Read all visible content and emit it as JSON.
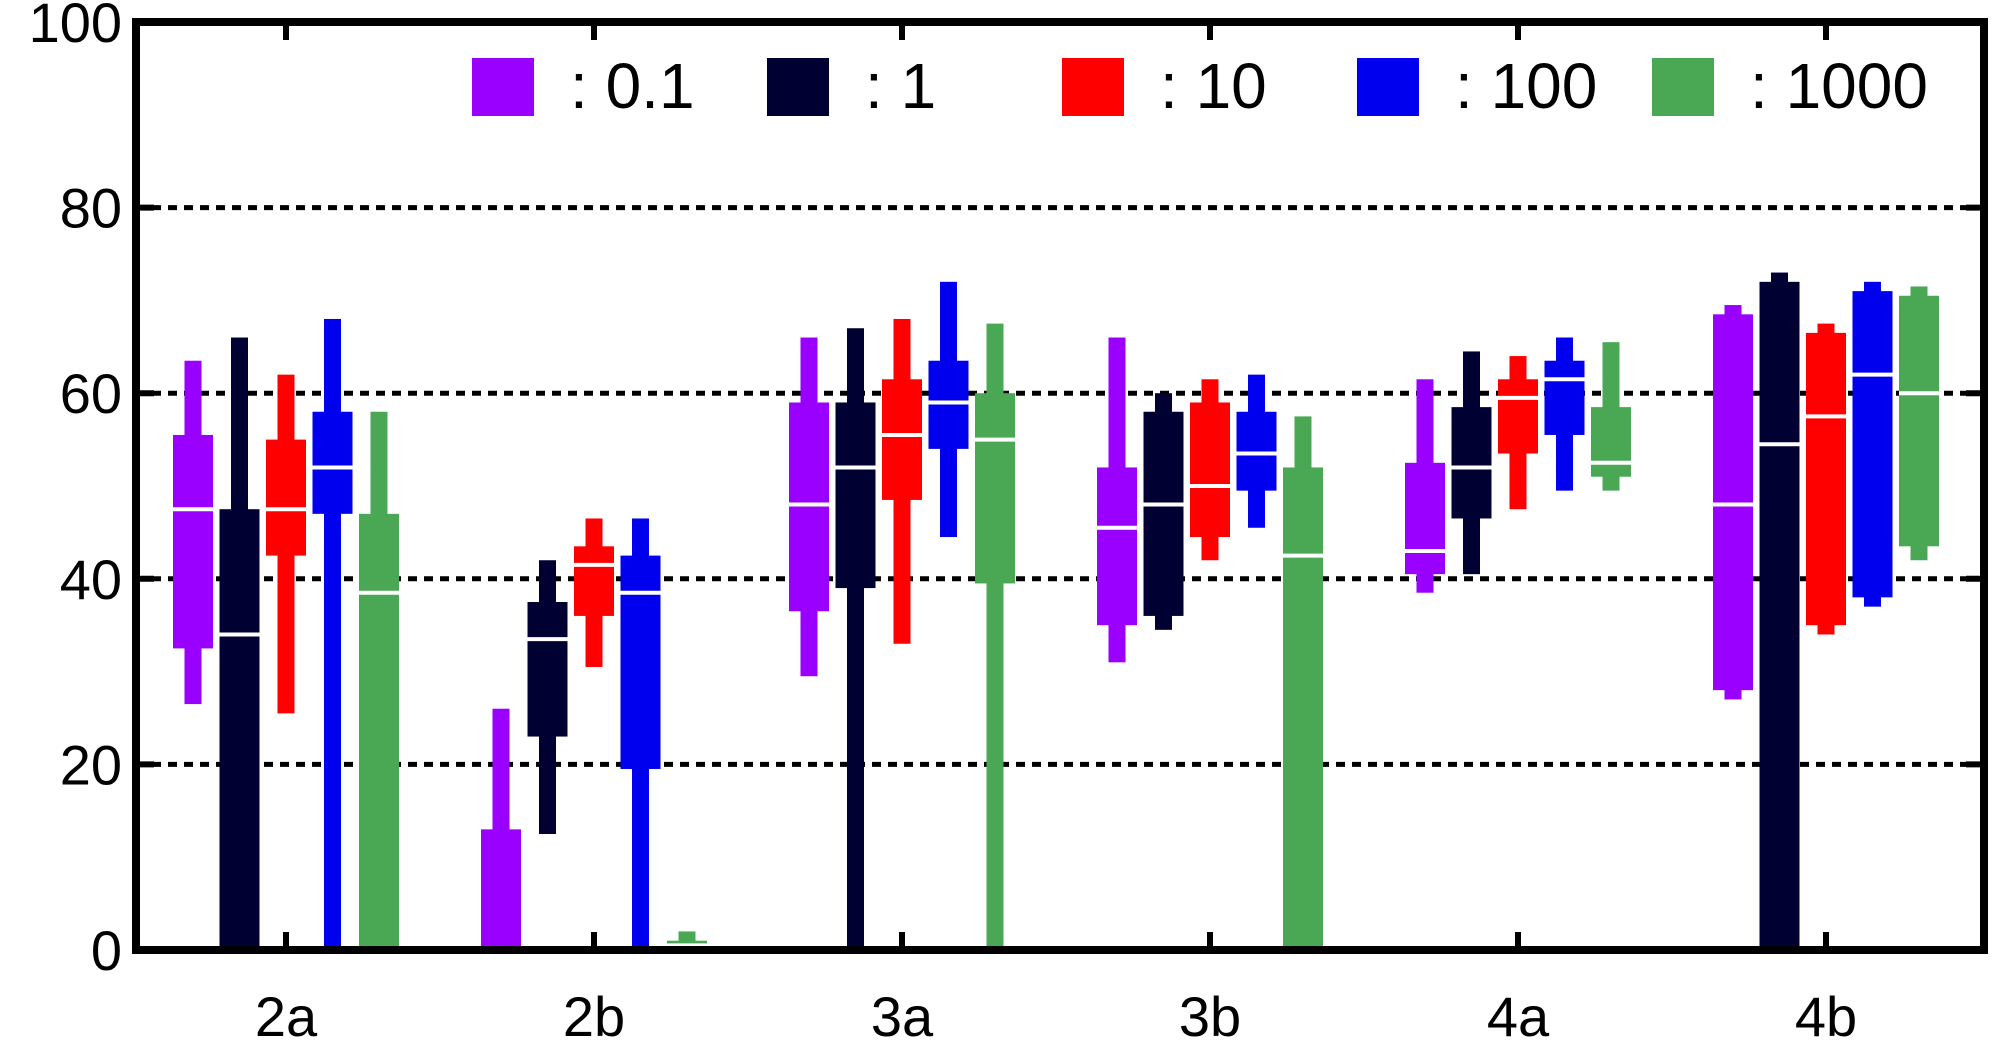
{
  "chart_data": {
    "type": "boxplot",
    "title": "",
    "xlabel": "",
    "ylabel": "",
    "ylim": [
      0,
      100
    ],
    "yticks": [
      0,
      20,
      40,
      60,
      80,
      100
    ],
    "grid": "horizontal dotted at 20, 40, 60, 80",
    "legend_placement": "top",
    "categories": [
      "2a",
      "2b",
      "3a",
      "3b",
      "4a",
      "4b"
    ],
    "series": [
      {
        "name": ": 0.1",
        "color": "#9900ff",
        "boxes": [
          {
            "min": 26.5,
            "q1": 32.5,
            "median": 47.5,
            "q3": 55.5,
            "max": 63.5
          },
          {
            "min": 0,
            "q1": 0,
            "median": 0,
            "q3": 13,
            "max": 26
          },
          {
            "min": 29.5,
            "q1": 36.5,
            "median": 48,
            "q3": 59,
            "max": 66
          },
          {
            "min": 31,
            "q1": 35,
            "median": 45.5,
            "q3": 52,
            "max": 66
          },
          {
            "min": 38.5,
            "q1": 40.5,
            "median": 43,
            "q3": 52.5,
            "max": 61.5
          },
          {
            "min": 27,
            "q1": 28,
            "median": 48,
            "q3": 68.5,
            "max": 69.5
          }
        ]
      },
      {
        "name": ": 1",
        "color": "#000033",
        "boxes": [
          {
            "min": 0,
            "q1": 0,
            "median": 34,
            "q3": 47.5,
            "max": 66
          },
          {
            "min": 12.5,
            "q1": 23,
            "median": 33.5,
            "q3": 37.5,
            "max": 42
          },
          {
            "min": 0,
            "q1": 39,
            "median": 52,
            "q3": 59,
            "max": 67
          },
          {
            "min": 34.5,
            "q1": 36,
            "median": 48,
            "q3": 58,
            "max": 60
          },
          {
            "min": 40.5,
            "q1": 46.5,
            "median": 52,
            "q3": 58.5,
            "max": 64.5
          },
          {
            "min": 0,
            "q1": 0,
            "median": 54.5,
            "q3": 72,
            "max": 73
          }
        ]
      },
      {
        "name": ": 10",
        "color": "#ff0000",
        "boxes": [
          {
            "min": 25.5,
            "q1": 42.5,
            "median": 47.5,
            "q3": 55,
            "max": 62
          },
          {
            "min": 30.5,
            "q1": 36,
            "median": 41.5,
            "q3": 43.5,
            "max": 46.5
          },
          {
            "min": 33,
            "q1": 48.5,
            "median": 55.5,
            "q3": 61.5,
            "max": 68
          },
          {
            "min": 42,
            "q1": 44.5,
            "median": 50,
            "q3": 59,
            "max": 61.5
          },
          {
            "min": 47.5,
            "q1": 53.5,
            "median": 59.5,
            "q3": 61.5,
            "max": 64
          },
          {
            "min": 34,
            "q1": 35,
            "median": 57.5,
            "q3": 66.5,
            "max": 67.5
          }
        ]
      },
      {
        "name": ": 100",
        "color": "#0000ee",
        "boxes": [
          {
            "min": 0,
            "q1": 47,
            "median": 52,
            "q3": 58,
            "max": 68
          },
          {
            "min": 0,
            "q1": 19.5,
            "median": 38.5,
            "q3": 42.5,
            "max": 46.5
          },
          {
            "min": 44.5,
            "q1": 54,
            "median": 59,
            "q3": 63.5,
            "max": 72
          },
          {
            "min": 45.5,
            "q1": 49.5,
            "median": 53.5,
            "q3": 58,
            "max": 62
          },
          {
            "min": 49.5,
            "q1": 55.5,
            "median": 61.5,
            "q3": 63.5,
            "max": 66
          },
          {
            "min": 37,
            "q1": 38,
            "median": 62,
            "q3": 71,
            "max": 72
          }
        ]
      },
      {
        "name": ": 1000",
        "color": "#4aa855",
        "boxes": [
          {
            "min": 0,
            "q1": 0,
            "median": 38.5,
            "q3": 47,
            "max": 58
          },
          {
            "min": 0,
            "q1": 0,
            "median": 0.5,
            "q3": 1,
            "max": 2
          },
          {
            "min": 0,
            "q1": 39.5,
            "median": 55,
            "q3": 60,
            "max": 67.5
          },
          {
            "min": 0,
            "q1": 0,
            "median": 42.5,
            "q3": 52,
            "max": 57.5
          },
          {
            "min": 49.5,
            "q1": 51,
            "median": 52.5,
            "q3": 58.5,
            "max": 65.5
          },
          {
            "min": 42,
            "q1": 43.5,
            "median": 60,
            "q3": 70.5,
            "max": 71.5
          }
        ]
      }
    ]
  }
}
